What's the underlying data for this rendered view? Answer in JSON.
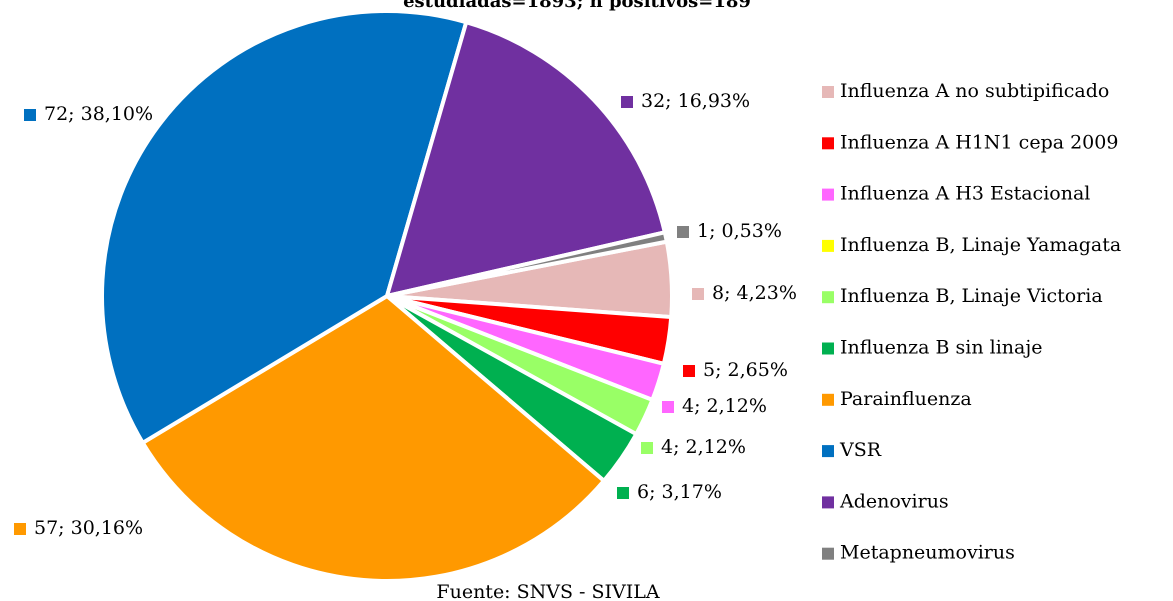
{
  "chart_data": {
    "type": "pie",
    "title": "estudiadas=1893; n positivos=189",
    "source": "Fuente: SNVS - SIVILA",
    "categories": [
      "Influenza A no subtipificado",
      "Influenza A H1N1 cepa 2009",
      "Influenza A H3 Estacional",
      "Influenza B, Linaje Yamagata",
      "Influenza B, Linaje Victoria",
      "Influenza B sin linaje",
      "Parainfluenza",
      "VSR",
      "Adenovirus",
      "Metapneumovirus"
    ],
    "values": [
      8,
      5,
      4,
      0,
      4,
      6,
      57,
      72,
      32,
      1
    ],
    "value_labels": [
      "8; 4,23%",
      "5; 2,65%",
      "4; 2,12%",
      null,
      "4; 2,12%",
      "6; 3,17%",
      "57; 30,16%",
      "72; 38,10%",
      "32; 16,93%",
      "1; 0,53%"
    ],
    "colors": [
      "#e6b8b7",
      "#ff0000",
      "#ff66ff",
      "#ffff00",
      "#99ff66",
      "#00b050",
      "#ff9900",
      "#0070c0",
      "#7030a0",
      "#808080"
    ],
    "legend": "right"
  }
}
